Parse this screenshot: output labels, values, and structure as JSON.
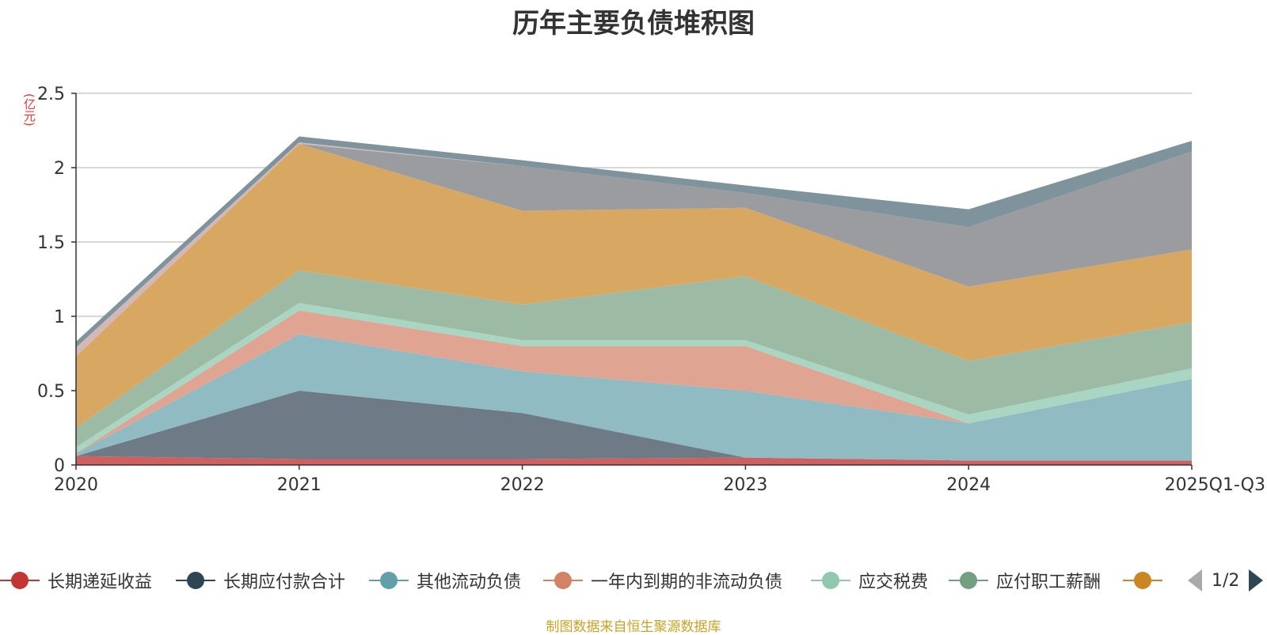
{
  "chart_data": {
    "type": "area",
    "stacked": true,
    "title": "历年主要负债堆积图",
    "ylabel": "(亿元)",
    "ylim": [
      0,
      2.5
    ],
    "yticks": [
      "0",
      "0.5",
      "1",
      "1.5",
      "2",
      "2.5"
    ],
    "categories": [
      "2020",
      "2021",
      "2022",
      "2023",
      "2024",
      "2025Q1-Q3"
    ],
    "series": [
      {
        "name": "长期递延收益",
        "color": "#d06060",
        "values": [
          0.06,
          0.04,
          0.04,
          0.05,
          0.03,
          0.03
        ]
      },
      {
        "name": "长期应付款合计",
        "color": "#6e7b86",
        "values": [
          0.0,
          0.46,
          0.31,
          0.0,
          0.0,
          0.0
        ]
      },
      {
        "name": "其他流动负债",
        "color": "#91bbc2",
        "values": [
          0.02,
          0.38,
          0.28,
          0.45,
          0.25,
          0.55
        ]
      },
      {
        "name": "一年内到期的非流动负债",
        "color": "#e0a592",
        "values": [
          0.0,
          0.16,
          0.17,
          0.3,
          0.0,
          0.0
        ]
      },
      {
        "name": "应交税费",
        "color": "#a9d5c3",
        "values": [
          0.04,
          0.05,
          0.04,
          0.04,
          0.06,
          0.07
        ]
      },
      {
        "name": "应付职工薪酬",
        "color": "#9cbaa4",
        "values": [
          0.13,
          0.22,
          0.24,
          0.43,
          0.36,
          0.31
        ]
      },
      {
        "name": "",
        "color": "#d8a862",
        "values": [
          0.48,
          0.85,
          0.63,
          0.46,
          0.5,
          0.49
        ]
      },
      {
        "name": "",
        "color": "#9a9ca0",
        "values": [
          0.0,
          0.0,
          0.3,
          0.1,
          0.4,
          0.66
        ]
      },
      {
        "name": "",
        "color": "#d4b8b8",
        "values": [
          0.06,
          0.01,
          0.0,
          0.0,
          0.0,
          0.0
        ]
      },
      {
        "name": "",
        "color": "#7f939c",
        "values": [
          0.04,
          0.04,
          0.04,
          0.05,
          0.12,
          0.07
        ]
      }
    ]
  },
  "legend": {
    "items": [
      {
        "label": "长期递延收益",
        "color": "#c23531"
      },
      {
        "label": "长期应付款合计",
        "color": "#2f4554"
      },
      {
        "label": "其他流动负债",
        "color": "#61a0a8"
      },
      {
        "label": "一年内到期的非流动负债",
        "color": "#d48265"
      },
      {
        "label": "应交税费",
        "color": "#91c7ae"
      },
      {
        "label": "应付职工薪酬",
        "color": "#749f83"
      },
      {
        "label": "",
        "color": "#ca8622"
      }
    ],
    "page": "1/2"
  },
  "source": "制图数据来自恒生聚源数据库"
}
